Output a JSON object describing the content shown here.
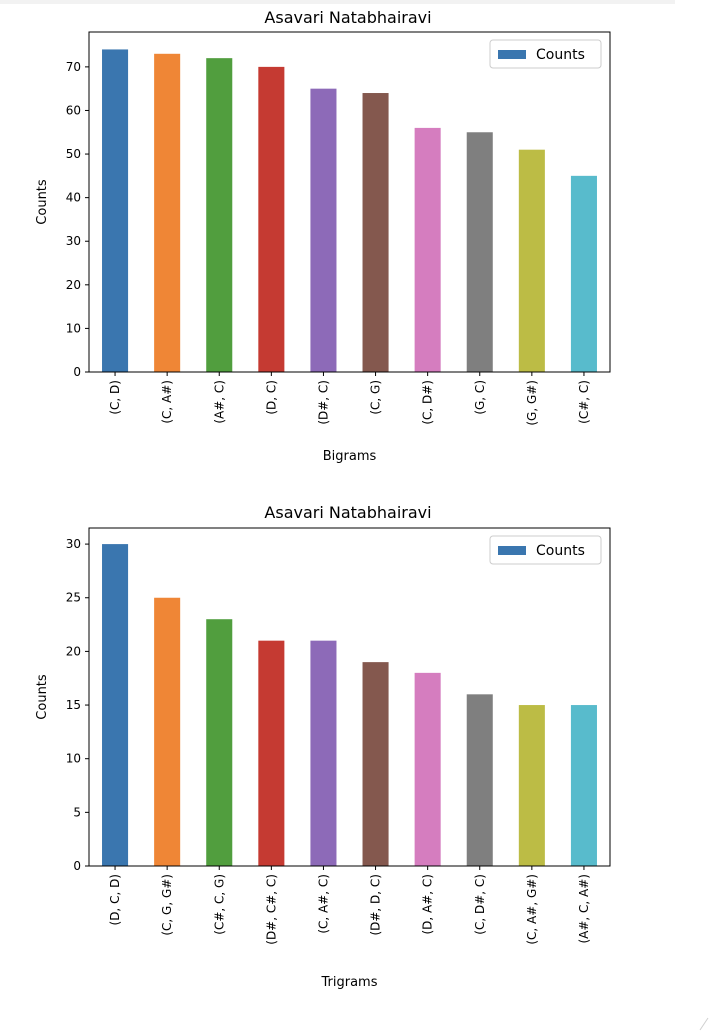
{
  "chart_data": [
    {
      "type": "bar",
      "title": "Asavari Natabhairavi",
      "xlabel": "Bigrams",
      "ylabel": "Counts",
      "categories": [
        "(C, D)",
        "(C, A#)",
        "(A#, C)",
        "(D, C)",
        "(D#, C)",
        "(C, G)",
        "(C, D#)",
        "(G, C)",
        "(G, G#)",
        "(C#, C)"
      ],
      "series": [
        {
          "name": "Counts",
          "values": [
            74,
            73,
            72,
            70,
            65,
            64,
            56,
            55,
            51,
            45
          ]
        }
      ],
      "bar_colors": [
        "#3a76af",
        "#ef8636",
        "#519e3e",
        "#c53a32",
        "#8d6ab8",
        "#84584e",
        "#d57dbf",
        "#7f7f7f",
        "#bcbc45",
        "#58bbcc"
      ],
      "ylim": [
        0,
        78
      ],
      "yticks": [
        0,
        10,
        20,
        30,
        40,
        50,
        60,
        70
      ],
      "grid": false,
      "legend": "top-right"
    },
    {
      "type": "bar",
      "title": "Asavari Natabhairavi",
      "xlabel": "Trigrams",
      "ylabel": "Counts",
      "categories": [
        "(D, C, D)",
        "(C, G, G#)",
        "(C#, C, G)",
        "(D#, C#, C)",
        "(C, A#, C)",
        "(D#, D, C)",
        "(D, A#, C)",
        "(C, D#, C)",
        "(C, A#, G#)",
        "(A#, C, A#)"
      ],
      "series": [
        {
          "name": "Counts",
          "values": [
            30,
            25,
            23,
            21,
            21,
            19,
            18,
            16,
            15,
            15
          ]
        }
      ],
      "bar_colors": [
        "#3a76af",
        "#ef8636",
        "#519e3e",
        "#c53a32",
        "#8d6ab8",
        "#84584e",
        "#d57dbf",
        "#7f7f7f",
        "#bcbc45",
        "#58bbcc"
      ],
      "ylim": [
        0,
        31.5
      ],
      "yticks": [
        0,
        5,
        10,
        15,
        20,
        25,
        30
      ],
      "grid": false,
      "legend": "top-right"
    }
  ]
}
